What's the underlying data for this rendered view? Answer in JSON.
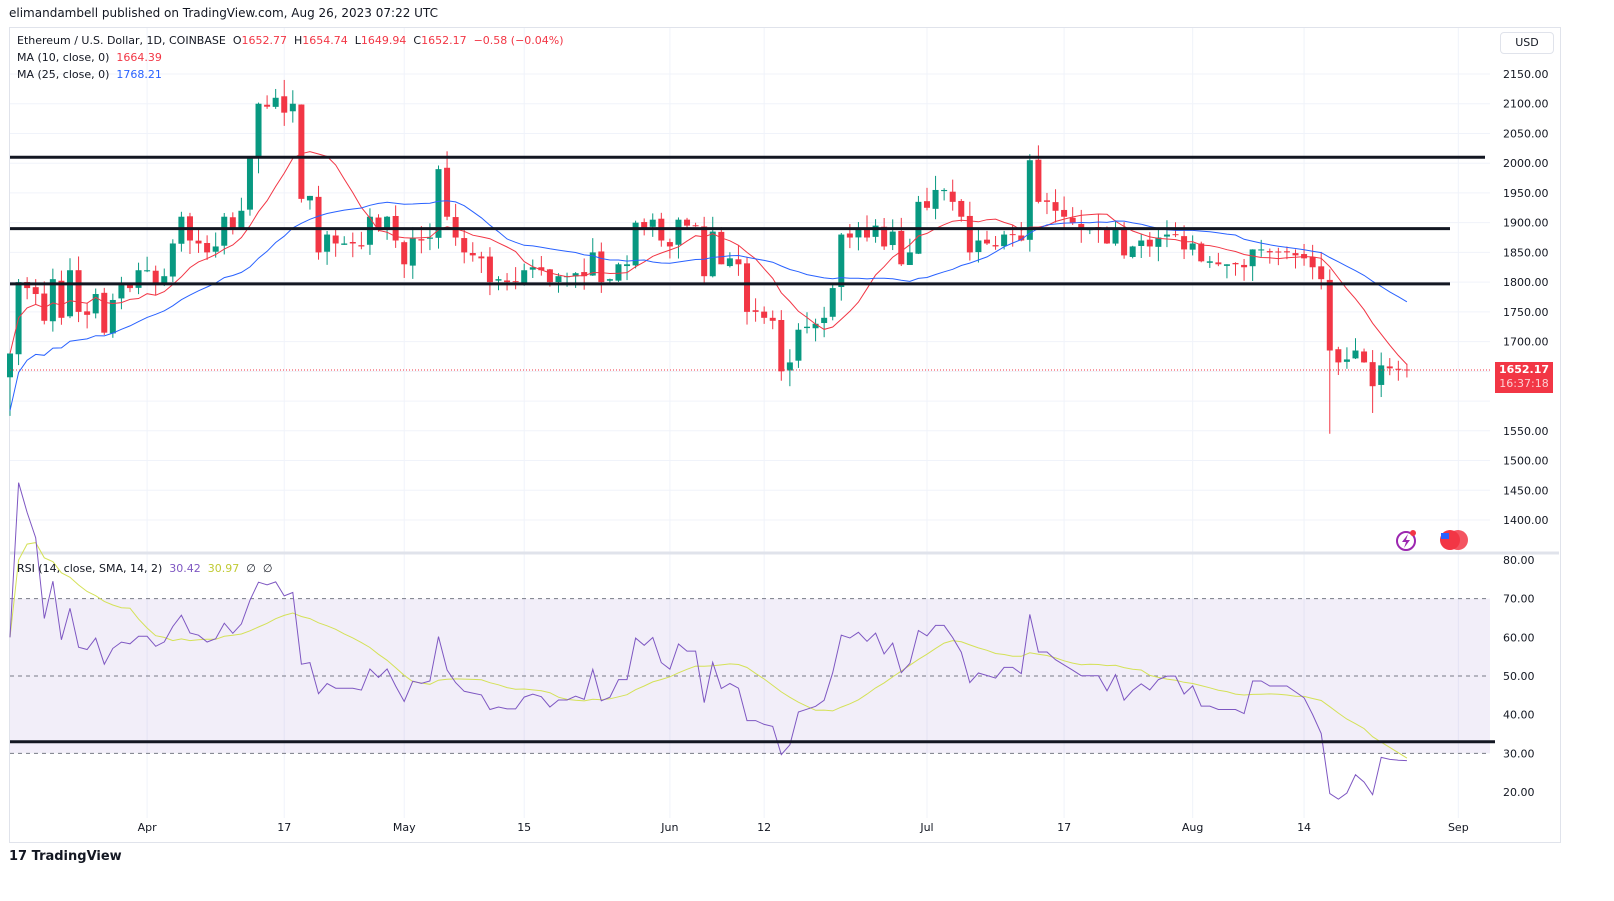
{
  "header": {
    "published": "elimandambell published on TradingView.com, Aug 26, 2023 07:22 UTC"
  },
  "legend": {
    "symbol": "Ethereum / U.S. Dollar, 1D, COINBASE",
    "o_label": "O",
    "o": "1652.77",
    "h_label": "H",
    "h": "1654.74",
    "l_label": "L",
    "l": "1649.94",
    "c_label": "C",
    "c": "1652.17",
    "change": "−0.58 (−0.04%)",
    "ma10_label": "MA (10, close, 0)",
    "ma10": "1664.39",
    "ma25_label": "MA (25, close, 0)",
    "ma25": "1768.21",
    "rsi_label": "RSI (14, close, SMA, 14, 2)",
    "rsi": "30.42",
    "rsi_sma": "30.97",
    "rsi_x1": "∅",
    "rsi_x2": "∅"
  },
  "currency": "USD",
  "last_price": {
    "price": "1652.17",
    "countdown": "16:37:18"
  },
  "brand": "TradingView",
  "colors": {
    "up": "#089981",
    "down": "#f23645",
    "ma10": "#f23645",
    "ma25": "#2962ff",
    "rsi": "#7e57c2",
    "rsi_sma": "#d4e157"
  },
  "chart_data": {
    "type": "candlestick",
    "title": "Ethereum / U.S. Dollar, 1D, COINBASE",
    "start_date": "2023-03-16",
    "closes_by_month": {
      "mar": [
        1680,
        1800,
        1790,
        1780,
        1735,
        1805,
        1740,
        1820,
        1750,
        1745,
        1780,
        1715,
        1770,
        1795,
        1790,
        1820
      ],
      "apr": [
        1820,
        1795,
        1810,
        1865,
        1910,
        1870,
        1865,
        1850,
        1860,
        1910,
        1890,
        1920,
        2010,
        2100,
        2095,
        2110,
        2085,
        2100,
        1940,
        1945,
        1850,
        1880,
        1865,
        1865,
        1865,
        1860,
        1910,
        1890,
        1910,
        1870
      ],
      "may": [
        1830,
        1875,
        1870,
        1875,
        1990,
        1910,
        1875,
        1850,
        1845,
        1840,
        1800,
        1805,
        1800,
        1800,
        1820,
        1825,
        1820,
        1800,
        1810,
        1810,
        1815,
        1810,
        1850,
        1800,
        1805,
        1830,
        1830,
        1900,
        1890,
        1905,
        1870
      ],
      "jun": [
        1860,
        1905,
        1895,
        1895,
        1810,
        1885,
        1830,
        1840,
        1830,
        1750,
        1750,
        1740,
        1735,
        1650,
        1665,
        1720,
        1725,
        1730,
        1740,
        1790,
        1880,
        1875,
        1890,
        1875,
        1895,
        1860,
        1885,
        1830,
        1850,
        1935
      ],
      "jul": [
        1925,
        1955,
        1955,
        1935,
        1910,
        1850,
        1870,
        1865,
        1860,
        1880,
        1880,
        1870,
        2005,
        1935,
        1935,
        1920,
        1910,
        1900,
        1890,
        1890,
        1890,
        1865,
        1890,
        1845,
        1860,
        1870,
        1860,
        1875,
        1880,
        1880,
        1855
      ],
      "aug": [
        1865,
        1835,
        1835,
        1830,
        1830,
        1830,
        1825,
        1855,
        1855,
        1850,
        1850,
        1850,
        1845,
        1840,
        1825,
        1805,
        1685,
        1665,
        1670,
        1685,
        1665,
        1625,
        1660,
        1655,
        1653,
        1652.17
      ]
    },
    "low_overrides": {
      "2023-08-17": 1545,
      "2023-08-22": 1580,
      "2023-06-15": 1625,
      "2023-03-16": 1575
    },
    "high_overrides": {
      "2023-04-17": 2140,
      "2023-07-14": 2030,
      "2023-05-06": 2020
    },
    "horizontal_levels": [
      2010,
      1890,
      1797
    ],
    "rsi_level": 33,
    "price_ylim": [
      1350,
      2170
    ],
    "price_ticks": [
      2150,
      2100,
      2050,
      2000,
      1950,
      1900,
      1850,
      1800,
      1750,
      1700,
      1650,
      1600,
      1550,
      1500,
      1450,
      1400,
      1350
    ],
    "rsi_ylim": [
      15,
      80
    ],
    "rsi_ticks": [
      80,
      70,
      60,
      50,
      40,
      30,
      20
    ],
    "rsi_bands": [
      30,
      50,
      70
    ],
    "x_ticks": [
      {
        "label": "Apr",
        "date": "2023-04-01"
      },
      {
        "label": "17",
        "date": "2023-04-17"
      },
      {
        "label": "May",
        "date": "2023-05-01"
      },
      {
        "label": "15",
        "date": "2023-05-15"
      },
      {
        "label": "Jun",
        "date": "2023-06-01"
      },
      {
        "label": "12",
        "date": "2023-06-12"
      },
      {
        "label": "Jul",
        "date": "2023-07-01"
      },
      {
        "label": "17",
        "date": "2023-07-17"
      },
      {
        "label": "Aug",
        "date": "2023-08-01"
      },
      {
        "label": "14",
        "date": "2023-08-14"
      },
      {
        "label": "Sep",
        "date": "2023-09-01"
      }
    ]
  }
}
